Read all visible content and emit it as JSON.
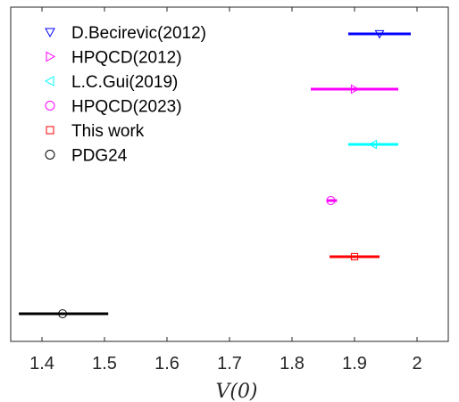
{
  "chart_data": {
    "type": "errorbar",
    "xlabel": "V(0)",
    "xlim": [
      1.35,
      2.05
    ],
    "xticks": [
      1.4,
      1.5,
      1.6,
      1.7,
      1.8,
      1.9,
      2
    ],
    "xtick_labels": [
      "1.4",
      "1.5",
      "1.6",
      "1.7",
      "1.8",
      "1.9",
      "2"
    ],
    "grid": false,
    "legend_position": "top-left",
    "series": [
      {
        "name": "D.Becirevic(2012)",
        "value": 1.94,
        "err_low": 1.89,
        "err_high": 1.99,
        "marker": "triangle-down",
        "color": "#0000ff"
      },
      {
        "name": "HPQCD(2012)",
        "value": 1.9,
        "err_low": 1.83,
        "err_high": 1.97,
        "marker": "triangle-right",
        "color": "#ff00ff"
      },
      {
        "name": "L.C.Gui(2019)",
        "value": 1.93,
        "err_low": 1.89,
        "err_high": 1.97,
        "marker": "triangle-left",
        "color": "#00ffff"
      },
      {
        "name": "HPQCD(2023)",
        "value": 1.862,
        "err_low": 1.855,
        "err_high": 1.872,
        "marker": "circle",
        "color": "#ff00ff"
      },
      {
        "name": "This work",
        "value": 1.9,
        "err_low": 1.86,
        "err_high": 1.94,
        "marker": "square",
        "color": "#ff0000"
      },
      {
        "name": "PDG24",
        "value": 1.433,
        "err_low": 1.363,
        "err_high": 1.506,
        "marker": "circle",
        "color": "#000000"
      }
    ]
  }
}
